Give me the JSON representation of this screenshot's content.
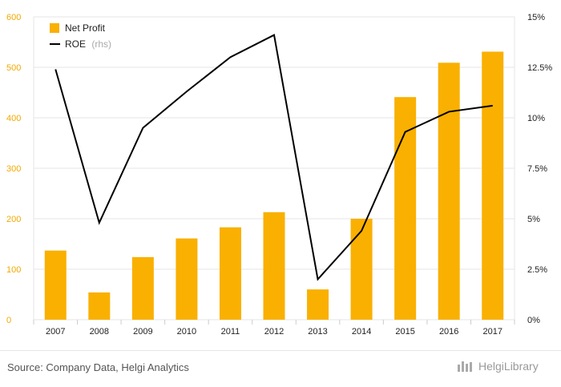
{
  "chart_data": {
    "type": "bar",
    "categories": [
      "2007",
      "2008",
      "2009",
      "2010",
      "2011",
      "2012",
      "2013",
      "2014",
      "2015",
      "2016",
      "2017"
    ],
    "series": [
      {
        "name": "Net Profit",
        "type": "bar",
        "axis": "left",
        "color": "#f9b000",
        "values": [
          137,
          54,
          124,
          161,
          183,
          213,
          60,
          200,
          441,
          509,
          531
        ]
      },
      {
        "name": "ROE",
        "name_suffix": "(rhs)",
        "type": "line",
        "axis": "right",
        "color": "#000000",
        "values": [
          12.4,
          4.8,
          9.5,
          11.3,
          13.0,
          14.1,
          2.0,
          4.4,
          9.3,
          10.3,
          10.6
        ]
      }
    ],
    "y_left": {
      "min": 0,
      "max": 600,
      "ticks": [
        "0",
        "100",
        "200",
        "300",
        "400",
        "500",
        "600"
      ],
      "color": "#f2a900"
    },
    "y_right": {
      "min": 0,
      "max": 15,
      "ticks": [
        "0%",
        "2.5%",
        "5%",
        "7.5%",
        "10%",
        "12.5%",
        "15%"
      ]
    },
    "grid": true,
    "legend_position": "top-left"
  },
  "footer": {
    "source": "Source: Company Data, Helgi Analytics",
    "brand": "HelgiLibrary"
  }
}
